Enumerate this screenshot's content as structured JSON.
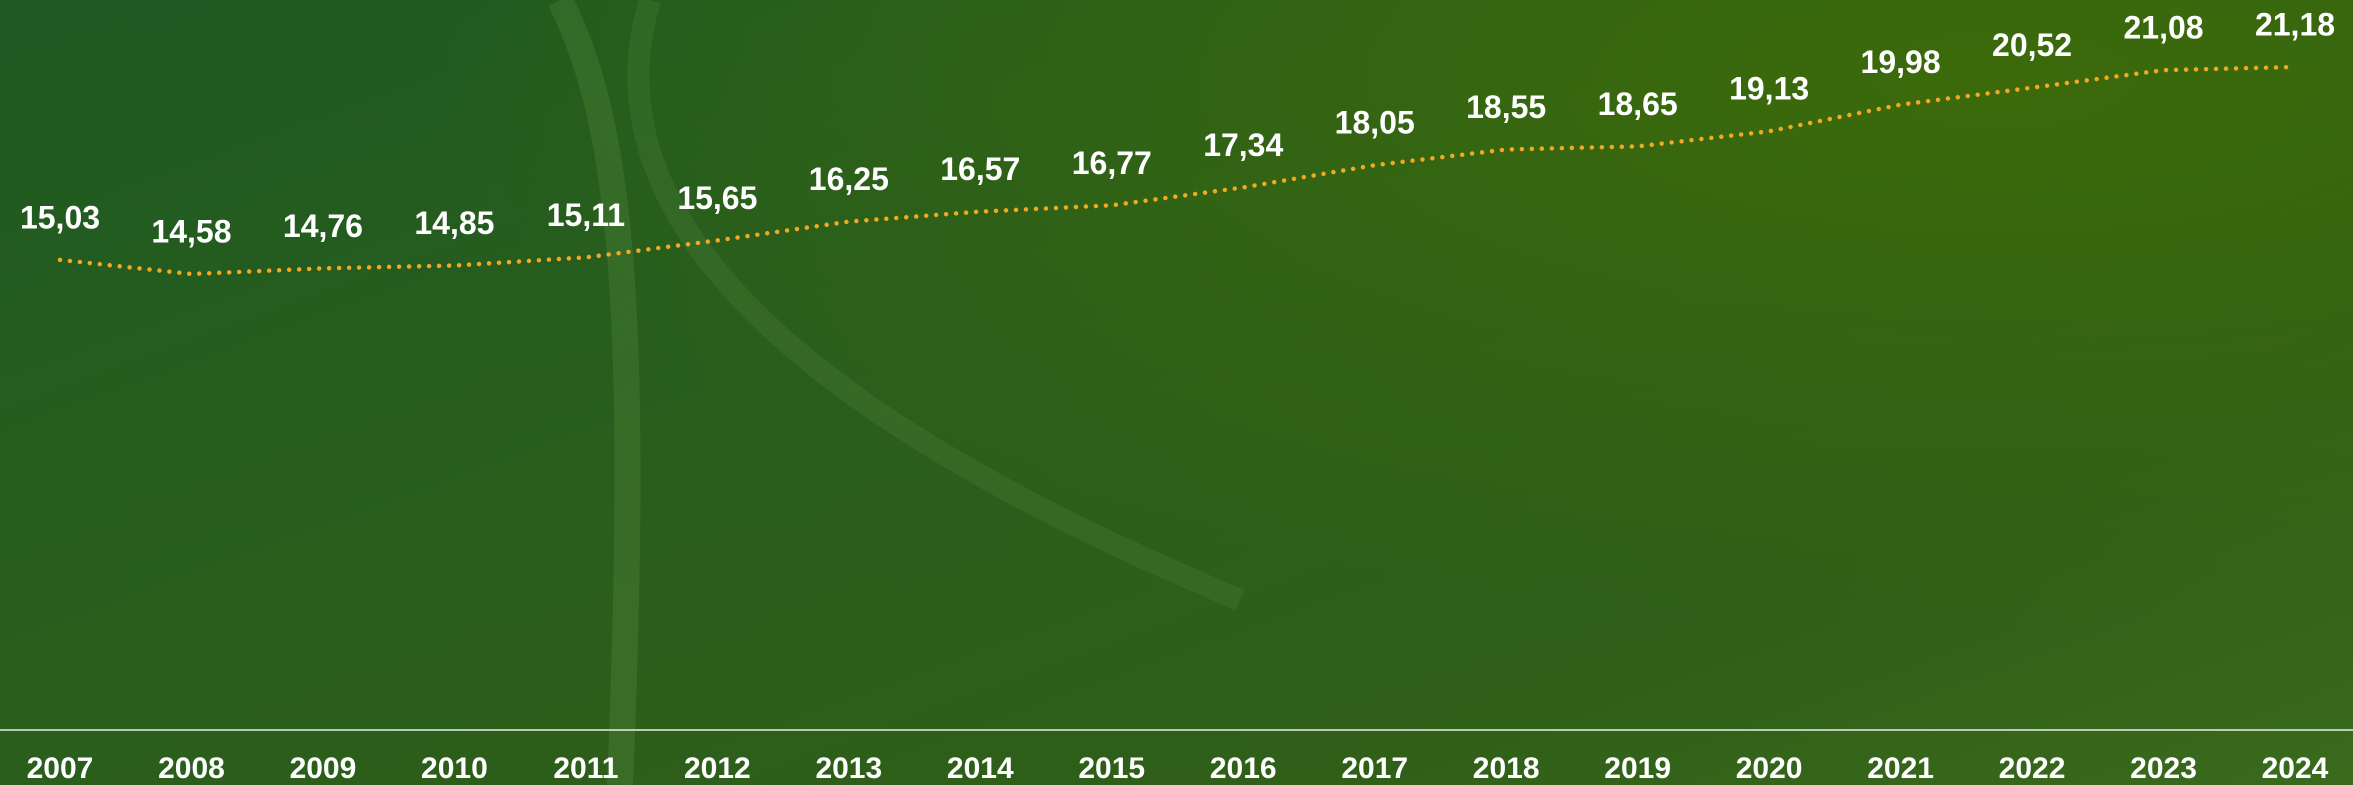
{
  "chart_data": {
    "type": "line",
    "categories": [
      "2007",
      "2008",
      "2009",
      "2010",
      "2011",
      "2012",
      "2013",
      "2014",
      "2015",
      "2016",
      "2017",
      "2018",
      "2019",
      "2020",
      "2021",
      "2022",
      "2023",
      "2024"
    ],
    "values": [
      15.03,
      14.58,
      14.76,
      14.85,
      15.11,
      15.65,
      16.25,
      16.57,
      16.77,
      17.34,
      18.05,
      18.55,
      18.65,
      19.13,
      19.98,
      20.52,
      21.08,
      21.18
    ],
    "value_labels": [
      "15,03",
      "14,58",
      "14,76",
      "14,85",
      "15,11",
      "15,65",
      "16,25",
      "16,57",
      "16,77",
      "17,34",
      "18,05",
      "18,55",
      "18,65",
      "19,13",
      "19,98",
      "20,52",
      "21,08",
      "21,18"
    ],
    "color": "#f2a822"
  }
}
